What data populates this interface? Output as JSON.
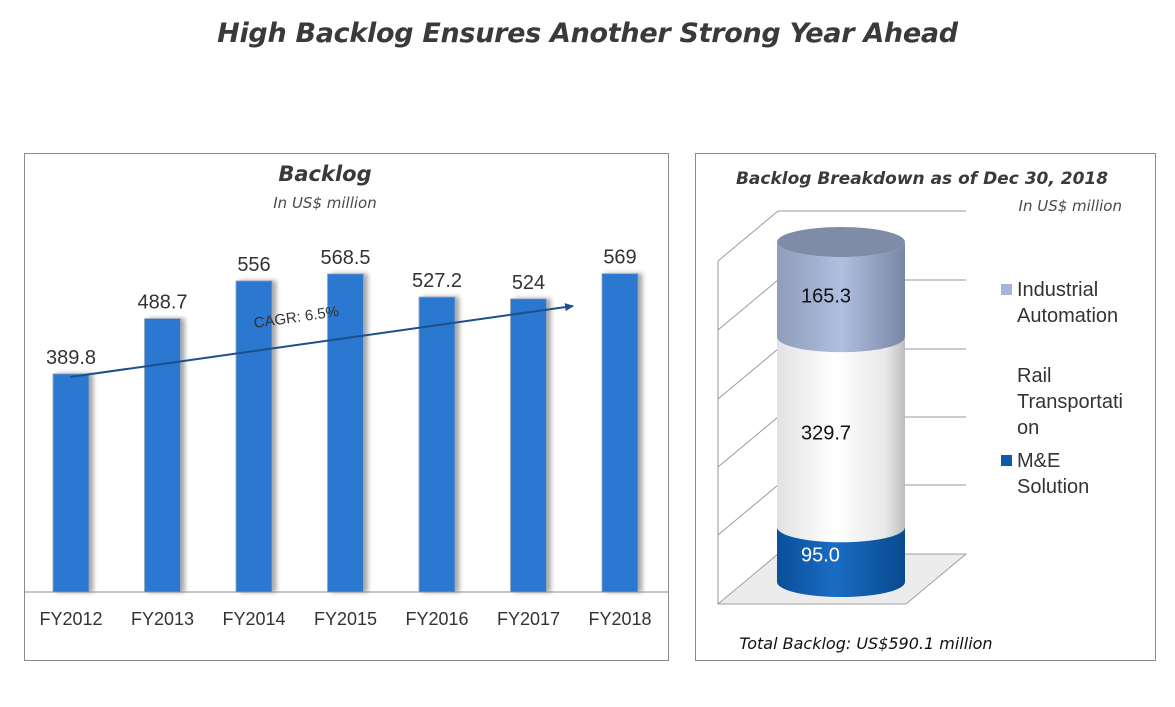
{
  "page_title": "High Backlog Ensures Another Strong Year Ahead",
  "chart_data": [
    {
      "type": "bar",
      "title": "Backlog",
      "subtitle": "In US$ million",
      "categories": [
        "FY2012",
        "FY2013",
        "FY2014",
        "FY2015",
        "FY2016",
        "FY2017",
        "FY2018"
      ],
      "values": [
        389.8,
        488.7,
        556,
        568.5,
        527.2,
        524,
        569
      ],
      "value_labels": [
        "389.8",
        "488.7",
        "556",
        "568.5",
        "527.2",
        "524",
        "569"
      ],
      "xlabel": "",
      "ylabel": "",
      "ylim": [
        0,
        600
      ],
      "grid": false,
      "bar_color": "#2a78cf",
      "annotation": {
        "text": "CAGR:  6.5%",
        "type": "trend-arrow",
        "color": "#1f4e8c"
      }
    },
    {
      "type": "bar",
      "subtype": "stacked-cylinder-3d",
      "title": "Backlog Breakdown as of Dec 30, 2018",
      "subtitle": "In US$ million",
      "categories": [
        "Dec 30, 2018"
      ],
      "series": [
        {
          "name": "M&E Solution",
          "values": [
            95.0
          ],
          "label": "95.0",
          "color": "#0b5cad"
        },
        {
          "name": "Rail Transportation",
          "legend_lines": [
            "Rail",
            "Transportati",
            "on"
          ],
          "values": [
            329.7
          ],
          "label": "329.7",
          "color": "#f2f2f2"
        },
        {
          "name": "Industrial Automation",
          "legend_lines": [
            "Industrial",
            "Automation"
          ],
          "values": [
            165.3
          ],
          "label": "165.3",
          "color": "#a6b5d6"
        }
      ],
      "legend": [
        {
          "lines": [
            "Industrial",
            "Automation"
          ],
          "color": "#a6b5d6"
        },
        {
          "lines": [
            "Rail",
            "Transportati",
            "on"
          ],
          "color": "#ffffff"
        },
        {
          "lines": [
            "M&E",
            "Solution"
          ],
          "color": "#0b5cad"
        }
      ],
      "legend_position": "right",
      "grid": true,
      "ylim": [
        0,
        600
      ],
      "footer": "Total Backlog: US$590.1 million"
    }
  ]
}
